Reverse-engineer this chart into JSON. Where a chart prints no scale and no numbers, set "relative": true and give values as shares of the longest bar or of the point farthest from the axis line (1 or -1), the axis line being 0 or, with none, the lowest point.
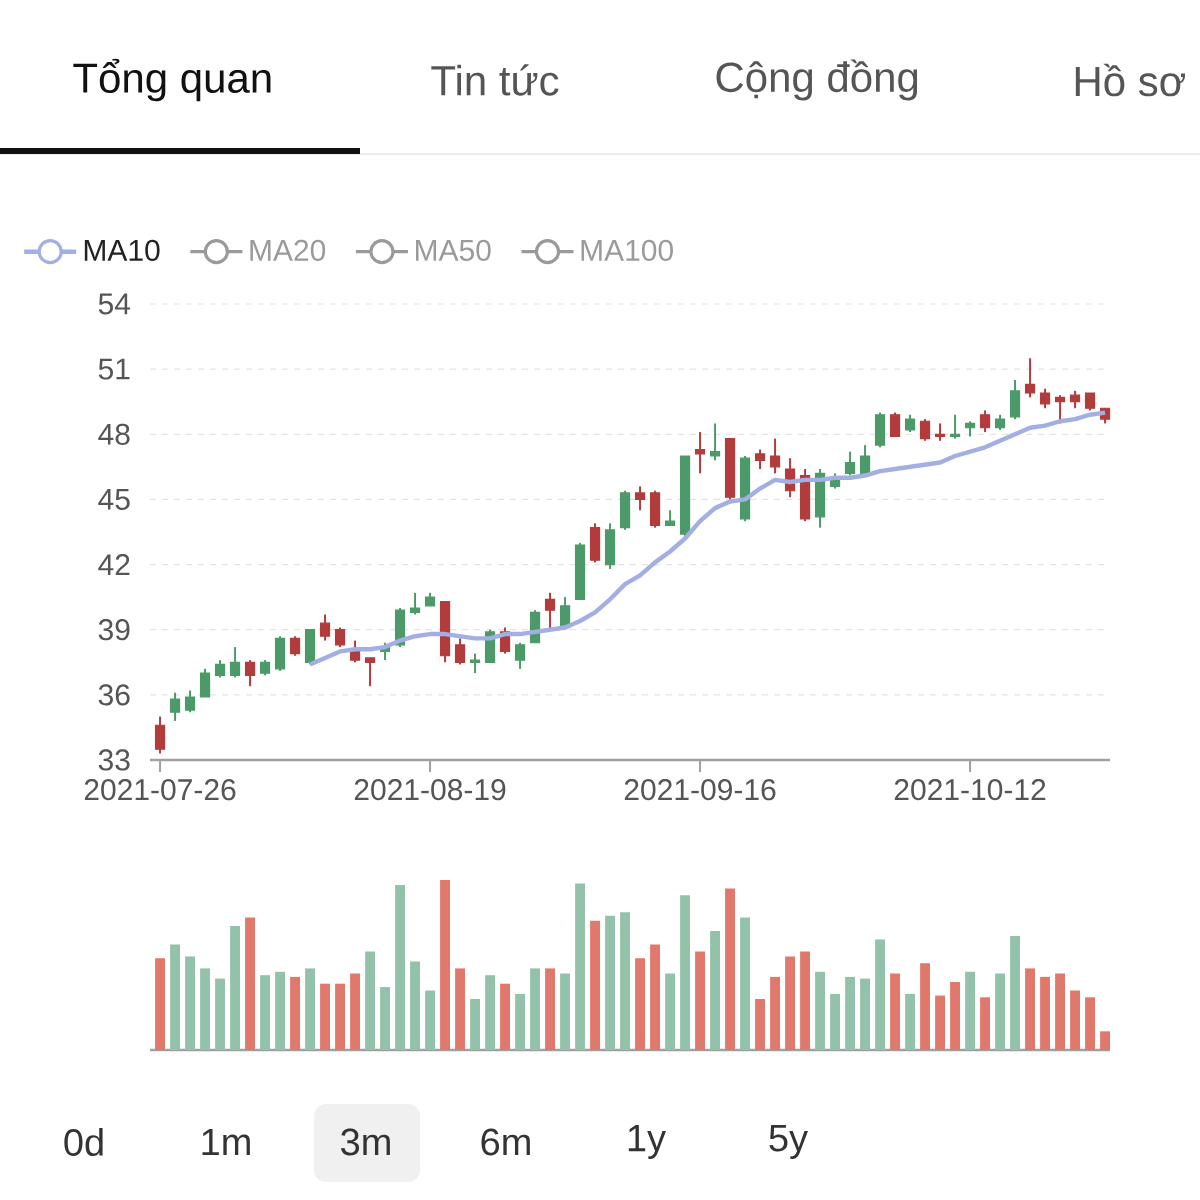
{
  "chart_data": [
    {
      "type": "candlestick",
      "categories": [
        "2021-07-26",
        null,
        null,
        null,
        null,
        null,
        null,
        null,
        null,
        null,
        null,
        null,
        null,
        null,
        null,
        null,
        null,
        null,
        "2021-08-19",
        null,
        null,
        null,
        null,
        null,
        null,
        null,
        null,
        null,
        null,
        null,
        null,
        null,
        null,
        null,
        null,
        null,
        "2021-09-16",
        null,
        null,
        null,
        null,
        null,
        null,
        null,
        null,
        null,
        null,
        null,
        null,
        null,
        null,
        null,
        null,
        null,
        "2021-10-12",
        null,
        null,
        null,
        null,
        null,
        null,
        null,
        null,
        null
      ],
      "ohlc": [
        [
          34.6,
          35.0,
          33.3,
          33.5
        ],
        [
          35.2,
          36.1,
          34.8,
          35.8
        ],
        [
          35.3,
          36.2,
          35.2,
          35.9
        ],
        [
          35.9,
          37.2,
          35.9,
          37.0
        ],
        [
          36.9,
          37.6,
          36.8,
          37.4
        ],
        [
          36.9,
          38.2,
          36.8,
          37.5
        ],
        [
          37.5,
          37.6,
          36.4,
          36.9
        ],
        [
          37.0,
          37.6,
          36.9,
          37.5
        ],
        [
          37.2,
          38.7,
          37.1,
          38.6
        ],
        [
          38.6,
          38.7,
          37.8,
          37.9
        ],
        [
          37.5,
          39.0,
          37.4,
          39.0
        ],
        [
          39.3,
          39.7,
          38.5,
          38.7
        ],
        [
          39.0,
          39.1,
          38.2,
          38.3
        ],
        [
          38.1,
          38.5,
          37.5,
          37.6
        ],
        [
          37.7,
          37.7,
          36.4,
          37.5
        ],
        [
          38.0,
          38.4,
          37.6,
          38.2
        ],
        [
          38.3,
          40.0,
          38.2,
          39.9
        ],
        [
          39.8,
          40.7,
          39.7,
          40.0
        ],
        [
          40.1,
          40.7,
          40.1,
          40.5
        ],
        [
          40.3,
          40.3,
          37.5,
          37.8
        ],
        [
          38.3,
          38.6,
          37.4,
          37.5
        ],
        [
          37.5,
          37.9,
          37.0,
          37.6
        ],
        [
          37.5,
          39.0,
          37.5,
          38.9
        ],
        [
          38.9,
          39.1,
          37.9,
          38.0
        ],
        [
          37.6,
          38.4,
          37.2,
          38.3
        ],
        [
          38.4,
          39.9,
          38.4,
          39.8
        ],
        [
          40.4,
          40.7,
          39.0,
          39.9
        ],
        [
          39.1,
          40.5,
          39.0,
          40.1
        ],
        [
          40.4,
          43.0,
          40.4,
          42.9
        ],
        [
          43.7,
          43.9,
          42.1,
          42.2
        ],
        [
          42.0,
          43.9,
          41.8,
          43.6
        ],
        [
          43.7,
          45.4,
          43.6,
          45.3
        ],
        [
          45.3,
          45.6,
          44.5,
          45.0
        ],
        [
          45.3,
          45.4,
          43.7,
          43.8
        ],
        [
          43.8,
          44.5,
          43.8,
          44.0
        ],
        [
          43.4,
          47.0,
          43.3,
          47.0
        ],
        [
          47.3,
          48.1,
          46.2,
          47.1
        ],
        [
          47.0,
          48.5,
          46.8,
          47.2
        ],
        [
          47.8,
          47.8,
          45.0,
          45.1
        ],
        [
          44.1,
          47.0,
          44.0,
          46.9
        ],
        [
          47.1,
          47.3,
          46.4,
          46.8
        ],
        [
          47.0,
          47.8,
          46.2,
          46.5
        ],
        [
          46.4,
          46.9,
          45.1,
          45.4
        ],
        [
          46.1,
          46.4,
          44.0,
          44.1
        ],
        [
          44.2,
          46.4,
          43.7,
          46.2
        ],
        [
          45.6,
          46.2,
          45.5,
          46.0
        ],
        [
          46.2,
          47.2,
          46.1,
          46.7
        ],
        [
          46.2,
          47.5,
          46.1,
          47.0
        ],
        [
          47.5,
          49.0,
          47.4,
          48.9
        ],
        [
          48.9,
          49.0,
          47.9,
          47.9
        ],
        [
          48.2,
          48.9,
          48.1,
          48.7
        ],
        [
          48.6,
          48.7,
          47.7,
          47.8
        ],
        [
          48.0,
          48.5,
          47.7,
          47.9
        ],
        [
          47.9,
          48.9,
          47.8,
          48.0
        ],
        [
          48.3,
          48.6,
          47.9,
          48.5
        ],
        [
          48.9,
          49.1,
          48.1,
          48.3
        ],
        [
          48.3,
          48.9,
          48.2,
          48.7
        ],
        [
          48.8,
          50.5,
          48.7,
          50.0
        ],
        [
          50.3,
          51.5,
          49.7,
          49.9
        ],
        [
          49.9,
          50.1,
          49.2,
          49.4
        ],
        [
          49.7,
          49.8,
          48.5,
          49.5
        ],
        [
          49.8,
          50.0,
          49.2,
          49.5
        ],
        [
          49.9,
          49.9,
          49.1,
          49.2
        ],
        [
          49.2,
          49.2,
          48.5,
          48.7
        ]
      ],
      "colors": [
        "#b23c3c",
        "#4c9a6a",
        "#4c9a6a",
        "#4c9a6a",
        "#4c9a6a",
        "#4c9a6a",
        "#b23c3c",
        "#4c9a6a",
        "#4c9a6a",
        "#b23c3c",
        "#4c9a6a",
        "#b23c3c",
        "#b23c3c",
        "#b23c3c",
        "#b23c3c",
        "#4c9a6a",
        "#4c9a6a",
        "#4c9a6a",
        "#4c9a6a",
        "#b23c3c",
        "#b23c3c",
        "#4c9a6a",
        "#4c9a6a",
        "#b23c3c",
        "#4c9a6a",
        "#4c9a6a",
        "#b23c3c",
        "#4c9a6a",
        "#4c9a6a",
        "#b23c3c",
        "#4c9a6a",
        "#4c9a6a",
        "#b23c3c",
        "#b23c3c",
        "#4c9a6a",
        "#4c9a6a",
        "#b23c3c",
        "#4c9a6a",
        "#b23c3c",
        "#4c9a6a",
        "#b23c3c",
        "#b23c3c",
        "#b23c3c",
        "#b23c3c",
        "#4c9a6a",
        "#4c9a6a",
        "#4c9a6a",
        "#4c9a6a",
        "#4c9a6a",
        "#b23c3c",
        "#4c9a6a",
        "#b23c3c",
        "#b23c3c",
        "#4c9a6a",
        "#4c9a6a",
        "#b23c3c",
        "#4c9a6a",
        "#4c9a6a",
        "#b23c3c",
        "#b23c3c",
        "#b23c3c",
        "#b23c3c",
        "#b23c3c",
        "#b23c3c"
      ],
      "series": [
        {
          "type": "line",
          "name": "MA10",
          "color": "#a3afe2",
          "values": [
            null,
            null,
            null,
            null,
            null,
            null,
            null,
            null,
            null,
            null,
            37.4,
            37.7,
            38.0,
            38.1,
            38.1,
            38.2,
            38.5,
            38.7,
            38.8,
            38.8,
            38.7,
            38.6,
            38.6,
            38.8,
            38.8,
            38.9,
            39.0,
            39.1,
            39.4,
            39.8,
            40.4,
            41.1,
            41.5,
            42.1,
            42.6,
            43.2,
            44.0,
            44.6,
            44.9,
            45.0,
            45.5,
            45.9,
            45.8,
            45.9,
            45.9,
            46.0,
            46.0,
            46.1,
            46.3,
            46.4,
            46.5,
            46.6,
            46.7,
            47.0,
            47.2,
            47.4,
            47.7,
            48.0,
            48.3,
            48.4,
            48.6,
            48.7,
            48.9,
            49.0
          ]
        },
        {
          "type": "line",
          "name": "MA20",
          "color": "#9a9a9a",
          "values": [
            null,
            null,
            null,
            null,
            null,
            null,
            null,
            null,
            null,
            null,
            null,
            null,
            null,
            null,
            null,
            null,
            null,
            null,
            null,
            null,
            null,
            null,
            null,
            null,
            null,
            null,
            null,
            null,
            null,
            null,
            null,
            null,
            null,
            null,
            null,
            null,
            null,
            null,
            null,
            null,
            null,
            null,
            null,
            null,
            null,
            null,
            null,
            null,
            null,
            null,
            null,
            null,
            null,
            null,
            null,
            null,
            null,
            null,
            null,
            null,
            null,
            null,
            null,
            null
          ]
        },
        {
          "type": "line",
          "name": "MA50",
          "color": "#9a9a9a",
          "values": [
            null,
            null,
            null,
            null,
            null,
            null,
            null,
            null,
            null,
            null,
            null,
            null,
            null,
            null,
            null,
            null,
            null,
            null,
            null,
            null,
            null,
            null,
            null,
            null,
            null,
            null,
            null,
            null,
            null,
            null,
            null,
            null,
            null,
            null,
            null,
            null,
            null,
            null,
            null,
            null,
            null,
            null,
            null,
            null,
            null,
            null,
            null,
            null,
            null,
            null,
            null,
            null,
            null,
            null,
            null,
            null,
            null,
            null,
            null,
            null,
            null,
            null,
            null,
            null
          ]
        },
        {
          "type": "line",
          "name": "MA100",
          "color": "#9a9a9a",
          "values": [
            null,
            null,
            null,
            null,
            null,
            null,
            null,
            null,
            null,
            null,
            null,
            null,
            null,
            null,
            null,
            null,
            null,
            null,
            null,
            null,
            null,
            null,
            null,
            null,
            null,
            null,
            null,
            null,
            null,
            null,
            null,
            null,
            null,
            null,
            null,
            null,
            null,
            null,
            null,
            null,
            null,
            null,
            null,
            null,
            null,
            null,
            null,
            null,
            null,
            null,
            null,
            null,
            null,
            null,
            null,
            null,
            null,
            null,
            null,
            null,
            null,
            null,
            null,
            null
          ]
        }
      ],
      "ylim": [
        33,
        54
      ],
      "yticks": [
        33,
        36,
        39,
        42,
        45,
        48,
        51,
        54
      ],
      "grid": "y",
      "legend": "top left",
      "annotations": [
        "Tổng quan",
        "Tin tức",
        "Cộng đồng",
        "Hồ sơ"
      ]
    },
    {
      "type": "bar",
      "relative": true,
      "categories": [
        null,
        null,
        null,
        null,
        null,
        null,
        null,
        null,
        null,
        null,
        null,
        null,
        null,
        null,
        null,
        null,
        null,
        null,
        null,
        null,
        null,
        null,
        null,
        null,
        null,
        null,
        null,
        null,
        null,
        null,
        null,
        null,
        null,
        null,
        null,
        null,
        null,
        null,
        null,
        null,
        null,
        null,
        null,
        null,
        null,
        null,
        null,
        null,
        null,
        null,
        null,
        null,
        null,
        null,
        null,
        null,
        null,
        null,
        null,
        null,
        null,
        null,
        null,
        null
      ],
      "values": [
        0.54,
        0.62,
        0.55,
        0.48,
        0.42,
        0.73,
        0.78,
        0.44,
        0.46,
        0.43,
        0.48,
        0.39,
        0.39,
        0.45,
        0.58,
        0.37,
        0.97,
        0.52,
        0.35,
        1,
        0.48,
        0.3,
        0.44,
        0.39,
        0.33,
        0.48,
        0.48,
        0.45,
        0.98,
        0.76,
        0.79,
        0.81,
        0.54,
        0.62,
        0.45,
        0.91,
        0.58,
        0.7,
        0.95,
        0.78,
        0.3,
        0.43,
        0.55,
        0.58,
        0.46,
        0.33,
        0.43,
        0.42,
        0.65,
        0.45,
        0.33,
        0.51,
        0.32,
        0.4,
        0.46,
        0.31,
        0.45,
        0.67,
        0.48,
        0.43,
        0.45,
        0.35,
        0.31,
        0.11
      ],
      "colors": [
        "#e0786c",
        "#92c2a9",
        "#92c2a9",
        "#92c2a9",
        "#92c2a9",
        "#92c2a9",
        "#e0786c",
        "#92c2a9",
        "#92c2a9",
        "#e0786c",
        "#92c2a9",
        "#e0786c",
        "#e0786c",
        "#e0786c",
        "#92c2a9",
        "#92c2a9",
        "#92c2a9",
        "#92c2a9",
        "#92c2a9",
        "#e0786c",
        "#e0786c",
        "#92c2a9",
        "#92c2a9",
        "#e0786c",
        "#92c2a9",
        "#92c2a9",
        "#e0786c",
        "#92c2a9",
        "#92c2a9",
        "#e0786c",
        "#92c2a9",
        "#92c2a9",
        "#e0786c",
        "#e0786c",
        "#92c2a9",
        "#92c2a9",
        "#e0786c",
        "#92c2a9",
        "#e0786c",
        "#92c2a9",
        "#e0786c",
        "#e0786c",
        "#e0786c",
        "#e0786c",
        "#92c2a9",
        "#92c2a9",
        "#92c2a9",
        "#92c2a9",
        "#92c2a9",
        "#e0786c",
        "#92c2a9",
        "#e0786c",
        "#e0786c",
        "#e0786c",
        "#92c2a9",
        "#e0786c",
        "#92c2a9",
        "#92c2a9",
        "#e0786c",
        "#e0786c",
        "#e0786c",
        "#e0786c",
        "#e0786c",
        "#e0786c"
      ],
      "annotations": [
        "0d",
        "1m",
        "3m",
        "6m",
        "1y",
        "5y"
      ]
    }
  ]
}
